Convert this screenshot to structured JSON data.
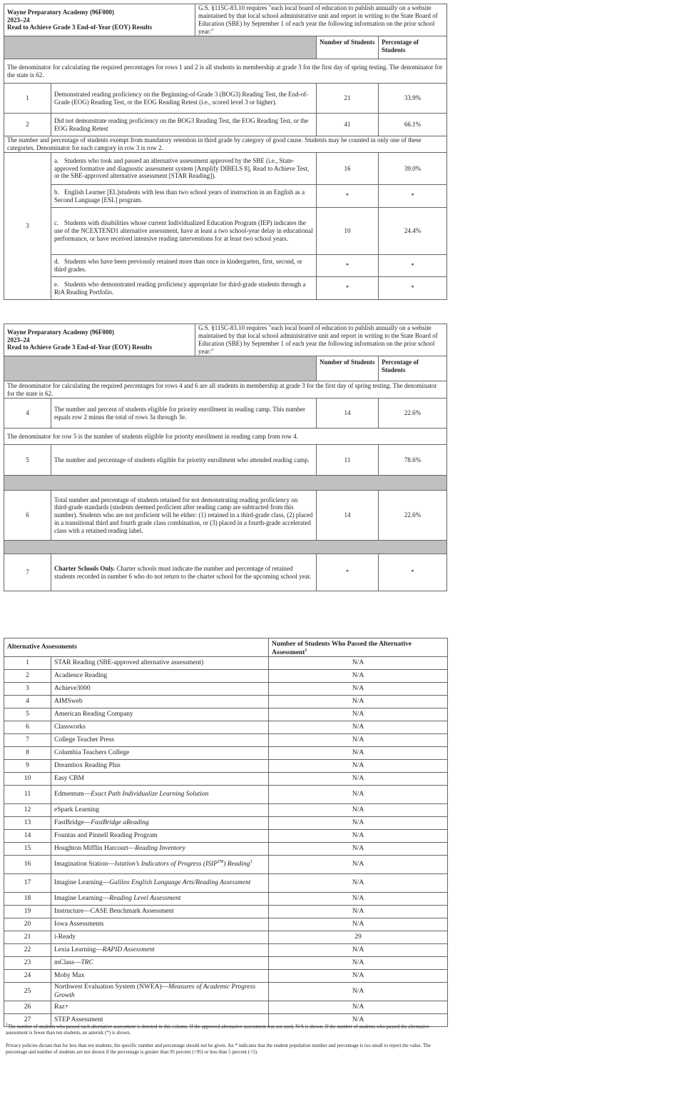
{
  "table1": {
    "header": {
      "school": "Wayne Preparatory Academy (96F000)",
      "year": "2023–24",
      "title": "Read to Achieve Grade 3 End-of-Year (EOY) Results",
      "statute": "G.S. §115C-83.10 requires \"each local board of education to publish annually on a website maintained by that local school administrative unit and report in writing to the State Board of Education (SBE) by September 1 of each year the following information on the prior school year:\""
    },
    "col_number": "Number of Students",
    "col_percent": "Percentage of Students",
    "rows": [
      {
        "kind": "note",
        "text": "The denominator for calculating the required percentages for rows 1 and 2 is all students in membership at grade 3 for the first day of spring testing. The denominator for the state is 62."
      },
      {
        "kind": "row",
        "num": 1,
        "desc": "Demonstrated reading proficiency on the Beginning-of-Grade 3 (BOG3) Reading Test, the End-of-Grade (EOG) Reading Test, or the EOG Reading Retest (i.e., scored level 3 or higher).",
        "students": 21,
        "percent": "33.9%"
      },
      {
        "kind": "row",
        "num": 2,
        "desc": "Did not demonstrate reading proficiency on the BOG3 Reading Test, the EOG Reading Test, or the EOG Reading Retest",
        "students": 41,
        "percent": "66.1%"
      },
      {
        "kind": "note",
        "text": "The number and percentage of students exempt from mandatory retention in third grade by category of good cause. Students may be counted in only one of these categories. Denominator for each category in row 3 is row 2."
      },
      {
        "kind": "group",
        "num": 3,
        "items": [
          {
            "letter": "a.",
            "desc": "Students who took and passed an alternative assessment approved by the SBE (i.e., State-approved formative and diagnostic assessment system [Amplify DIBELS 8], Read to Achieve Test, or the SBE-approved alternative assessment [STAR Reading]).",
            "students": 16,
            "percent": "39.0%"
          },
          {
            "letter": "b.",
            "desc": "English Learner [EL]students with less than two school years of instruction in an English as a Second Language [ESL] program.",
            "students": "*",
            "percent": "*"
          },
          {
            "letter": "c.",
            "desc": "Students with disabilities whose current Individualized Education Program (IEP) indicates the use of the NCEXTEND1 alternative assessment, have at least a two school-year delay in educational performance, or have received intensive reading interventions for at least two school years.",
            "students": 10,
            "percent": "24.4%"
          },
          {
            "letter": "d.",
            "desc": "Students who have been previously retained more than once in kindergarten, first, second, or third grades.",
            "students": "*",
            "percent": "*"
          },
          {
            "letter": "e.",
            "desc": "Students who demonstrated reading proficiency appropriate for third-grade students through a RtA Reading Portfolio.",
            "students": "*",
            "percent": "*"
          }
        ]
      }
    ]
  },
  "table2": {
    "header": {
      "school": "Wayne Preparatory Academy (96F000)",
      "year": "2023–24",
      "title": "Read to Achieve Grade 3 End-of-Year (EOY) Results",
      "statute": "G.S. §115C-83.10 requires \"each local board of education to publish annually on a website maintained by that local school administrative unit and report in writing to the State Board of Education (SBE) by September 1 of each year the following information on the prior school year:\""
    },
    "col_number": "Number of Students",
    "col_percent": "Percentage of Students",
    "rows": [
      {
        "kind": "note",
        "text": "The denominator for calculating the required percentages for rows 4 and 6 are all students in membership at grade 3 for the first day of spring testing. The denominator for the state is 62."
      },
      {
        "kind": "row",
        "num": 4,
        "desc": "The number and percent of students eligible for priority enrollment in reading camp. This number equals row 2 minus the total of rows 3a through 3e.",
        "students": 14,
        "percent": "22.6%"
      },
      {
        "kind": "note",
        "text": "The denominator for row 5 is the number of students eligible for priority enrollment in reading camp from row 4."
      },
      {
        "kind": "row",
        "num": 5,
        "desc": "The number and percentage of students eligible for priority enrollment who attended reading camp.",
        "students": 11,
        "percent": "78.6%"
      },
      {
        "kind": "gray"
      },
      {
        "kind": "row",
        "num": 6,
        "desc": "Total number and percentage of students retained for not demonstrating reading proficiency on third-grade standards (students deemed proficient after reading camp are subtracted from this number). Students who are not proficient will be either: (1) retained in a third-grade class, (2) placed in a transitional third and fourth grade class combination, or (3) placed in a fourth-grade accelerated class with a retained reading label.",
        "students": 14,
        "percent": "22.6%"
      },
      {
        "kind": "gray"
      },
      {
        "kind": "row",
        "num": 7,
        "lead": "Charter Schools Only.",
        "desc": "Charter schools must indicate the number and percentage of retained students recorded in number 6 who do not return to the charter school for the upcoming school year.",
        "students": "*",
        "percent": "*"
      }
    ]
  },
  "table3": {
    "col_assessment": "Alternative Assessments",
    "col_passed": "Number of Students Who Passed the Alternative Assessment",
    "col_passed_note": "1",
    "rows": [
      {
        "num": 1,
        "name": [
          {
            "t": "STAR Reading (SBE-approved alternative assessment)"
          }
        ],
        "passed": "N/A"
      },
      {
        "num": 2,
        "name": [
          {
            "t": "Acadience Reading"
          }
        ],
        "passed": "N/A"
      },
      {
        "num": 3,
        "name": [
          {
            "t": "Achieve3000"
          }
        ],
        "passed": "N/A"
      },
      {
        "num": 4,
        "name": [
          {
            "t": "AIMSweb"
          }
        ],
        "passed": "N/A"
      },
      {
        "num": 5,
        "name": [
          {
            "t": "American Reading Company"
          }
        ],
        "passed": "N/A"
      },
      {
        "num": 6,
        "name": [
          {
            "t": "Classworks"
          }
        ],
        "passed": "N/A"
      },
      {
        "num": 7,
        "name": [
          {
            "t": "College Teacher Press"
          }
        ],
        "passed": "N/A"
      },
      {
        "num": 8,
        "name": [
          {
            "t": "Columbia Teachers College"
          }
        ],
        "passed": "N/A"
      },
      {
        "num": 9,
        "name": [
          {
            "t": "Dreambox Reading Plus"
          }
        ],
        "passed": "N/A"
      },
      {
        "num": 10,
        "name": [
          {
            "t": "Easy CBM"
          }
        ],
        "passed": "N/A"
      },
      {
        "num": 11,
        "name": [
          {
            "t": "Edmentum—"
          },
          {
            "t": "Exact Path Individualize Learning Solution",
            "i": true
          }
        ],
        "passed": "N/A"
      },
      {
        "num": 12,
        "name": [
          {
            "t": "eSpark Learning"
          }
        ],
        "passed": "N/A"
      },
      {
        "num": 13,
        "name": [
          {
            "t": "FastBridge—"
          },
          {
            "t": "FastBridge aReading",
            "i": true
          }
        ],
        "passed": "N/A"
      },
      {
        "num": 14,
        "name": [
          {
            "t": "Fountas and Pinnell Reading Program"
          }
        ],
        "passed": "N/A"
      },
      {
        "num": 15,
        "name": [
          {
            "t": "Houghton Mifflin Harcourt—"
          },
          {
            "t": "Reading Inventory",
            "i": true
          }
        ],
        "passed": "N/A"
      },
      {
        "num": 16,
        "name": [
          {
            "t": "Imagination Station—"
          },
          {
            "t": "Istation’s Indicators of Progress (ISIP",
            "i": true
          },
          {
            "t": "TM",
            "i": true,
            "sup": true
          },
          {
            "t": ") Reading",
            "i": true
          },
          {
            "t": "3",
            "sup": true
          }
        ],
        "passed": "N/A"
      },
      {
        "num": 17,
        "name": [
          {
            "t": "Imagine Learning—"
          },
          {
            "t": "Galileo English Language Arts/Reading Assessment",
            "i": true
          }
        ],
        "passed": "N/A"
      },
      {
        "num": 18,
        "name": [
          {
            "t": "Imagine Learning—"
          },
          {
            "t": "Reading Level Assessment",
            "i": true
          }
        ],
        "passed": "N/A"
      },
      {
        "num": 19,
        "name": [
          {
            "t": "Instructure—CASE Benchmark Assessment"
          }
        ],
        "passed": "N/A"
      },
      {
        "num": 20,
        "name": [
          {
            "t": "Iowa Assessments"
          }
        ],
        "passed": "N/A"
      },
      {
        "num": 21,
        "name": [
          {
            "t": "i-Ready"
          }
        ],
        "passed": 29
      },
      {
        "num": 22,
        "name": [
          {
            "t": "Lexia Learning—"
          },
          {
            "t": "RAPID Assessment",
            "i": true
          }
        ],
        "passed": "N/A"
      },
      {
        "num": 23,
        "name": [
          {
            "t": "mClass—"
          },
          {
            "t": "TRC",
            "i": true
          }
        ],
        "passed": "N/A"
      },
      {
        "num": 24,
        "name": [
          {
            "t": "Moby Max"
          }
        ],
        "passed": "N/A"
      },
      {
        "num": 25,
        "name": [
          {
            "t": "Northwest Evaluation System (NWEA)—"
          },
          {
            "t": "Measures of Academic Progress Growth",
            "i": true
          }
        ],
        "passed": "N/A"
      },
      {
        "num": 26,
        "name": [
          {
            "t": "Raz+"
          }
        ],
        "passed": "N/A"
      },
      {
        "num": 27,
        "name": [
          {
            "t": "STEP Assessment"
          }
        ],
        "passed": "N/A"
      }
    ]
  },
  "footnotes": {
    "mark": "1",
    "note1": "The number of students who passed each alternative assessment is denoted in this column. If the approved alternative assessment was not used, N/A is shown. If the number of students who passed the alternative assessment is fewer than ten students, an asterisk (*) is shown.",
    "note2": "Privacy policies dictate that for less than ten students, the specific number and percentage should not be given. An * indicates that the student population number and percentage is too small to report the value. The percentage and number of students are not shown if the percentage is greater than 95 percent (>95) or less than 5 percent (<5)."
  }
}
